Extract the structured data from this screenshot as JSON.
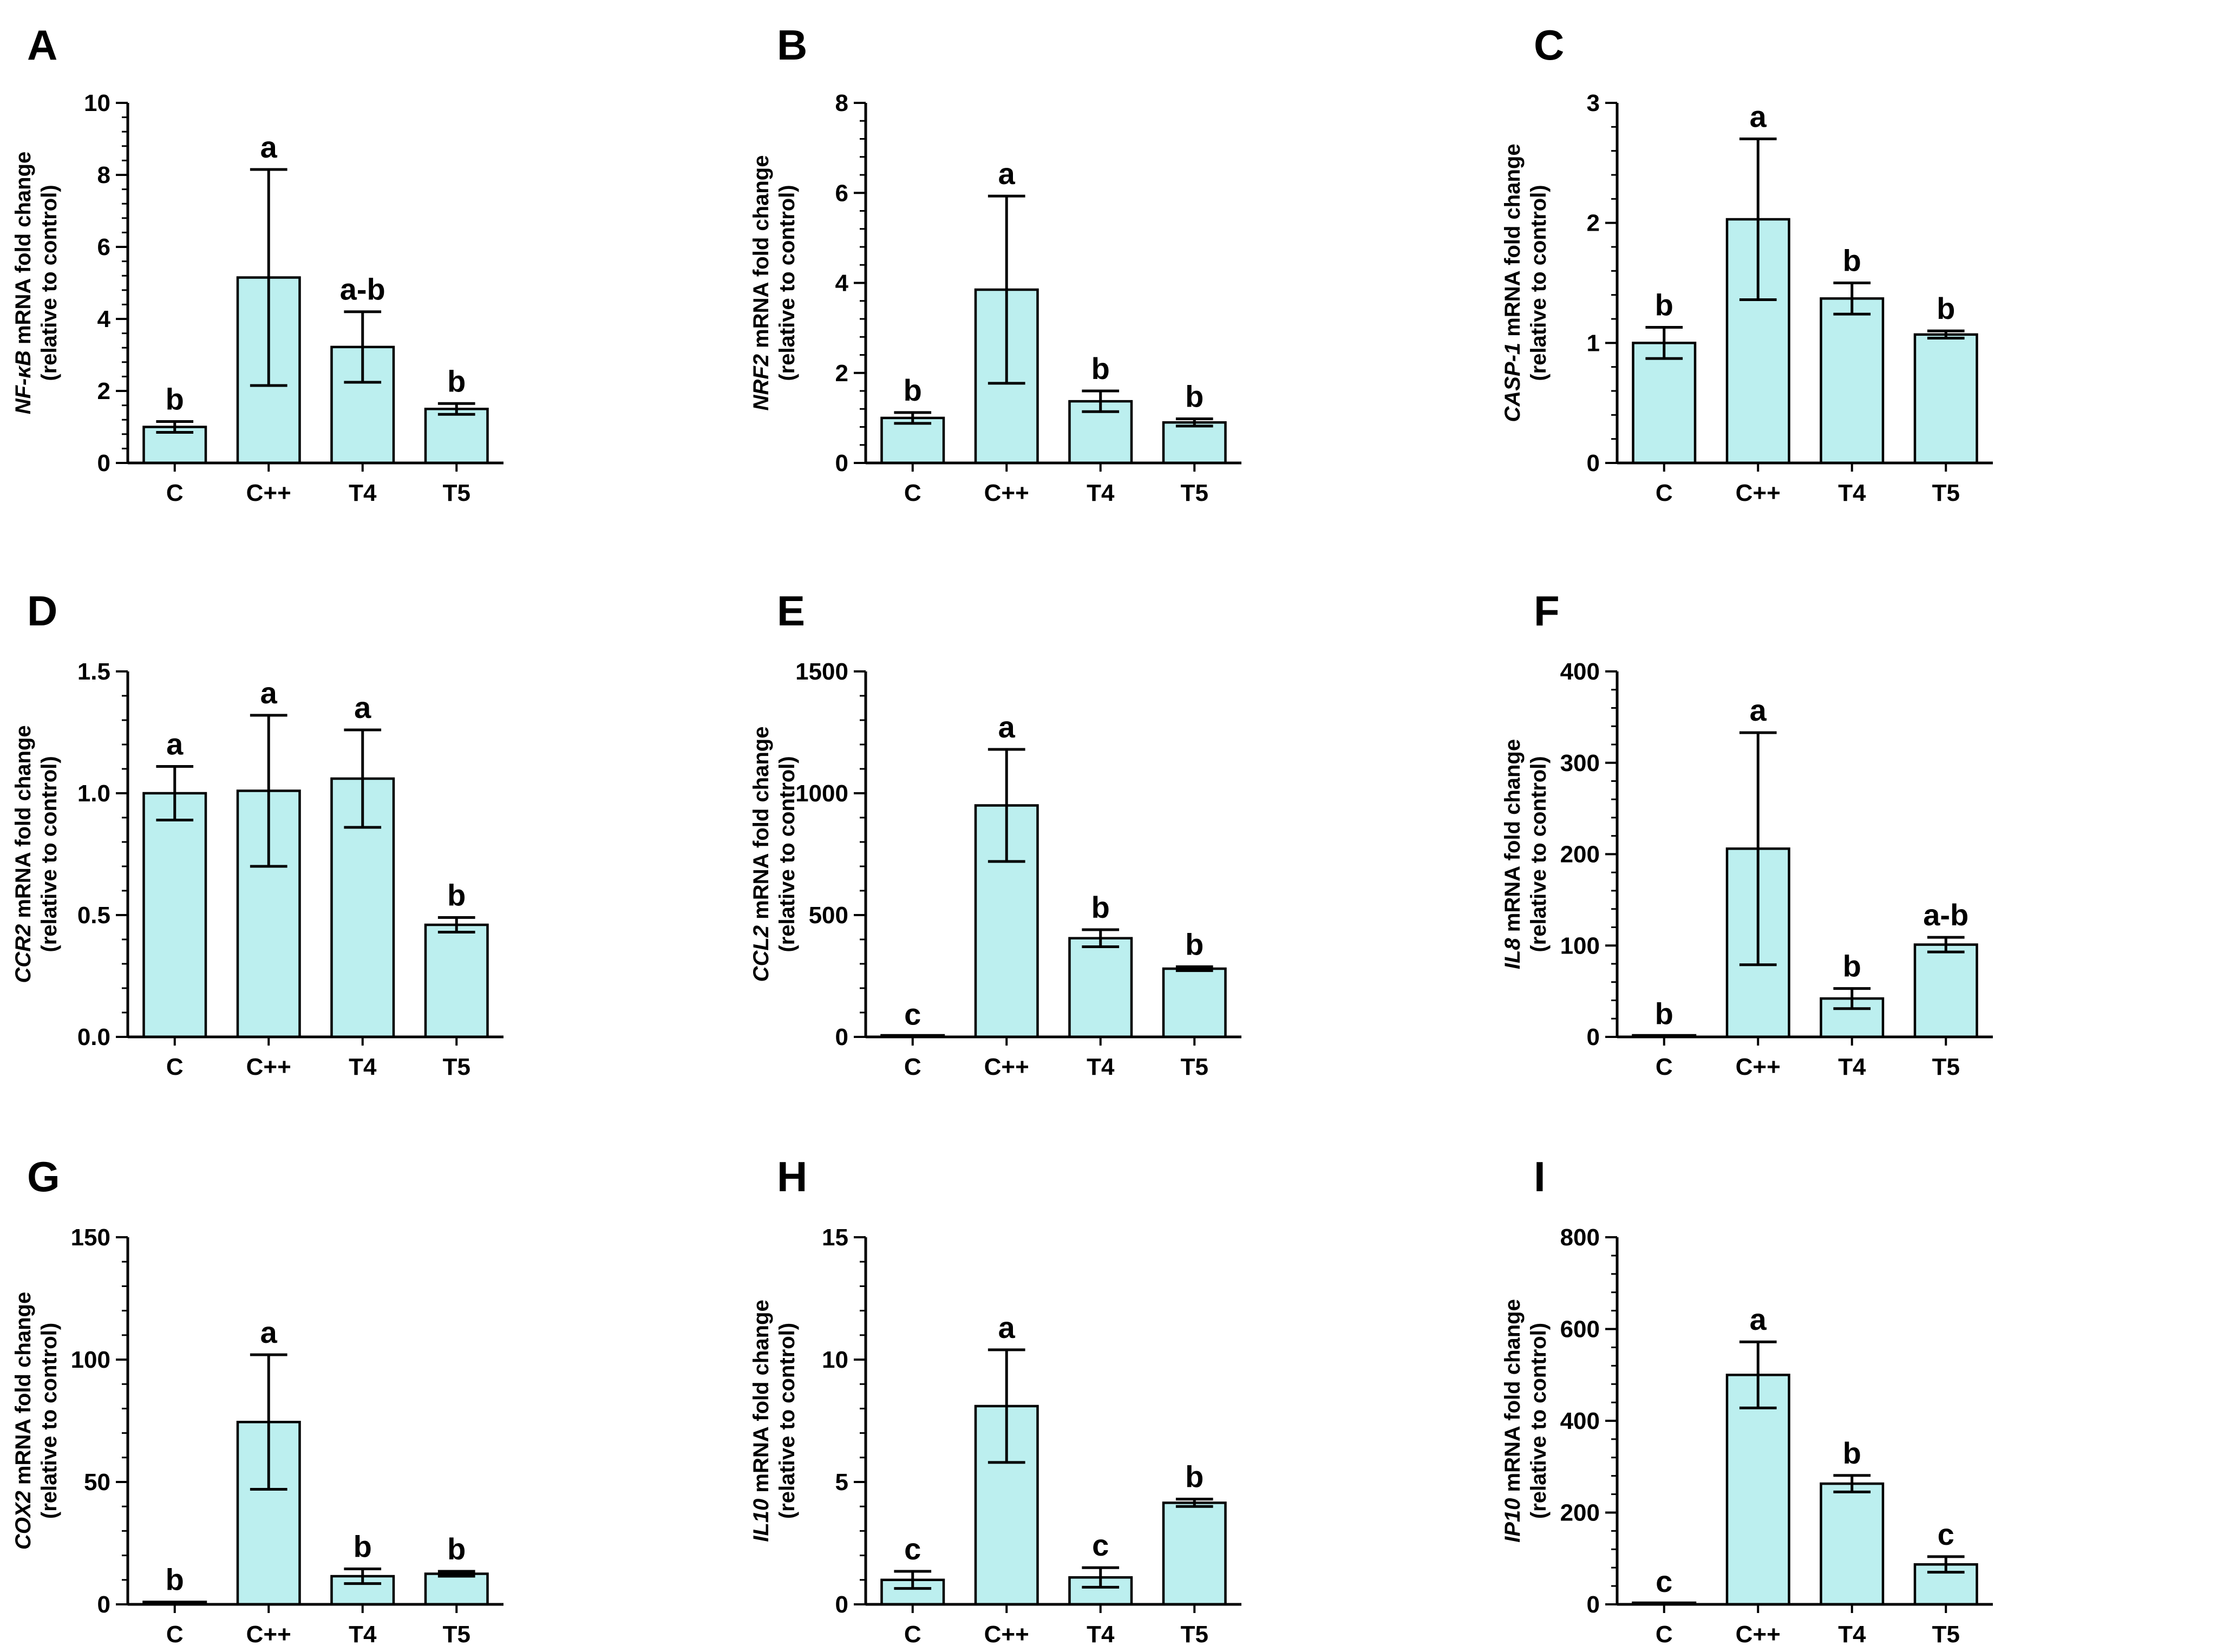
{
  "figure": {
    "bar_color": "#bcefef",
    "axis_color": "#000000"
  },
  "chart_data": [
    {
      "panel": "A",
      "type": "bar",
      "gene": "NF-κB",
      "ylabel_suffix": " mRNA fold change",
      "ylabel2": "(relative to control)",
      "categories": [
        "C",
        "C++",
        "T4",
        "T5"
      ],
      "values": [
        1.0,
        5.15,
        3.22,
        1.5
      ],
      "errors": [
        0.15,
        3.0,
        0.98,
        0.15
      ],
      "significance": [
        "b",
        "a",
        "a-b",
        "b"
      ],
      "ylim": [
        0,
        10
      ],
      "yticks": [
        "0",
        "2",
        "4",
        "6",
        "8",
        "10"
      ],
      "ytick_values": [
        0,
        2,
        4,
        6,
        8,
        10
      ]
    },
    {
      "panel": "B",
      "type": "bar",
      "gene": "NRF2",
      "ylabel_suffix": " mRNA fold change",
      "ylabel2": "(relative to control)",
      "categories": [
        "C",
        "C++",
        "T4",
        "T5"
      ],
      "values": [
        1.0,
        3.85,
        1.37,
        0.9
      ],
      "errors": [
        0.12,
        2.08,
        0.23,
        0.08
      ],
      "significance": [
        "b",
        "a",
        "b",
        "b"
      ],
      "ylim": [
        0,
        8
      ],
      "yticks": [
        "0",
        "2",
        "4",
        "6",
        "8"
      ],
      "ytick_values": [
        0,
        2,
        4,
        6,
        8
      ]
    },
    {
      "panel": "C",
      "type": "bar",
      "gene": "CASP-1",
      "ylabel_suffix": " mRNA fold change",
      "ylabel2": "(relative to control)",
      "categories": [
        "C",
        "C++",
        "T4",
        "T5"
      ],
      "values": [
        1.0,
        2.03,
        1.37,
        1.07
      ],
      "errors": [
        0.13,
        0.67,
        0.13,
        0.03
      ],
      "significance": [
        "b",
        "a",
        "b",
        "b"
      ],
      "ylim": [
        0,
        3
      ],
      "yticks": [
        "0",
        "1",
        "2",
        "3"
      ],
      "ytick_values": [
        0,
        1,
        2,
        3
      ]
    },
    {
      "panel": "D",
      "type": "bar",
      "gene": "CCR2",
      "ylabel_suffix": " mRNA fold change",
      "ylabel2": "(relative to control)",
      "categories": [
        "C",
        "C++",
        "T4",
        "T5"
      ],
      "values": [
        1.0,
        1.01,
        1.06,
        0.46
      ],
      "errors": [
        0.11,
        0.31,
        0.2,
        0.03
      ],
      "significance": [
        "a",
        "a",
        "a",
        "b"
      ],
      "ylim": [
        0,
        1.5
      ],
      "yticks": [
        "0.0",
        "0.5",
        "1.0",
        "1.5"
      ],
      "ytick_values": [
        0,
        0.5,
        1.0,
        1.5
      ]
    },
    {
      "panel": "E",
      "type": "bar",
      "gene": "CCL2",
      "ylabel_suffix": " mRNA fold change",
      "ylabel2": "(relative to control)",
      "categories": [
        "C",
        "C++",
        "T4",
        "T5"
      ],
      "values": [
        1,
        950,
        405,
        280
      ],
      "errors": [
        0,
        230,
        35,
        8
      ],
      "significance": [
        "c",
        "a",
        "b",
        "b"
      ],
      "ylim": [
        0,
        1500
      ],
      "yticks": [
        "0",
        "500",
        "1000",
        "1500"
      ],
      "ytick_values": [
        0,
        500,
        1000,
        1500
      ]
    },
    {
      "panel": "F",
      "type": "bar",
      "gene": "IL8",
      "ylabel_suffix": " mRNA fold change",
      "ylabel2": "(relative to control)",
      "categories": [
        "C",
        "C++",
        "T4",
        "T5"
      ],
      "values": [
        1,
        206,
        42,
        101
      ],
      "errors": [
        0,
        127,
        11,
        8
      ],
      "significance": [
        "b",
        "a",
        "b",
        "a-b"
      ],
      "ylim": [
        0,
        400
      ],
      "yticks": [
        "0",
        "100",
        "200",
        "300",
        "400"
      ],
      "ytick_values": [
        0,
        100,
        200,
        300,
        400
      ]
    },
    {
      "panel": "G",
      "type": "bar",
      "gene": "COX2",
      "ylabel_suffix": " mRNA fold change",
      "ylabel2": "(relative to control)",
      "categories": [
        "C",
        "C++",
        "T4",
        "T5"
      ],
      "values": [
        1,
        74.5,
        11.5,
        12.5
      ],
      "errors": [
        0,
        27.5,
        3,
        1
      ],
      "significance": [
        "b",
        "a",
        "b",
        "b"
      ],
      "ylim": [
        0,
        150
      ],
      "yticks": [
        "0",
        "50",
        "100",
        "150"
      ],
      "ytick_values": [
        0,
        50,
        100,
        150
      ]
    },
    {
      "panel": "H",
      "type": "bar",
      "gene": "IL10",
      "ylabel_suffix": " mRNA fold change",
      "ylabel2": "(relative to control)",
      "categories": [
        "C",
        "C++",
        "T4",
        "T5"
      ],
      "values": [
        1.0,
        8.1,
        1.1,
        4.15
      ],
      "errors": [
        0.35,
        2.3,
        0.4,
        0.15
      ],
      "significance": [
        "c",
        "a",
        "c",
        "b"
      ],
      "ylim": [
        0,
        15
      ],
      "yticks": [
        "0",
        "5",
        "10",
        "15"
      ],
      "ytick_values": [
        0,
        5,
        10,
        15
      ]
    },
    {
      "panel": "I",
      "type": "bar",
      "gene": "IP10",
      "ylabel_suffix": " mRNA fold change",
      "ylabel2": "(relative to control)",
      "categories": [
        "C",
        "C++",
        "T4",
        "T5"
      ],
      "values": [
        1,
        500,
        263,
        87
      ],
      "errors": [
        0,
        72,
        18,
        17
      ],
      "significance": [
        "c",
        "a",
        "b",
        "c"
      ],
      "ylim": [
        0,
        800
      ],
      "yticks": [
        "0",
        "200",
        "400",
        "600",
        "800"
      ],
      "ytick_values": [
        0,
        200,
        400,
        600,
        800
      ]
    }
  ]
}
